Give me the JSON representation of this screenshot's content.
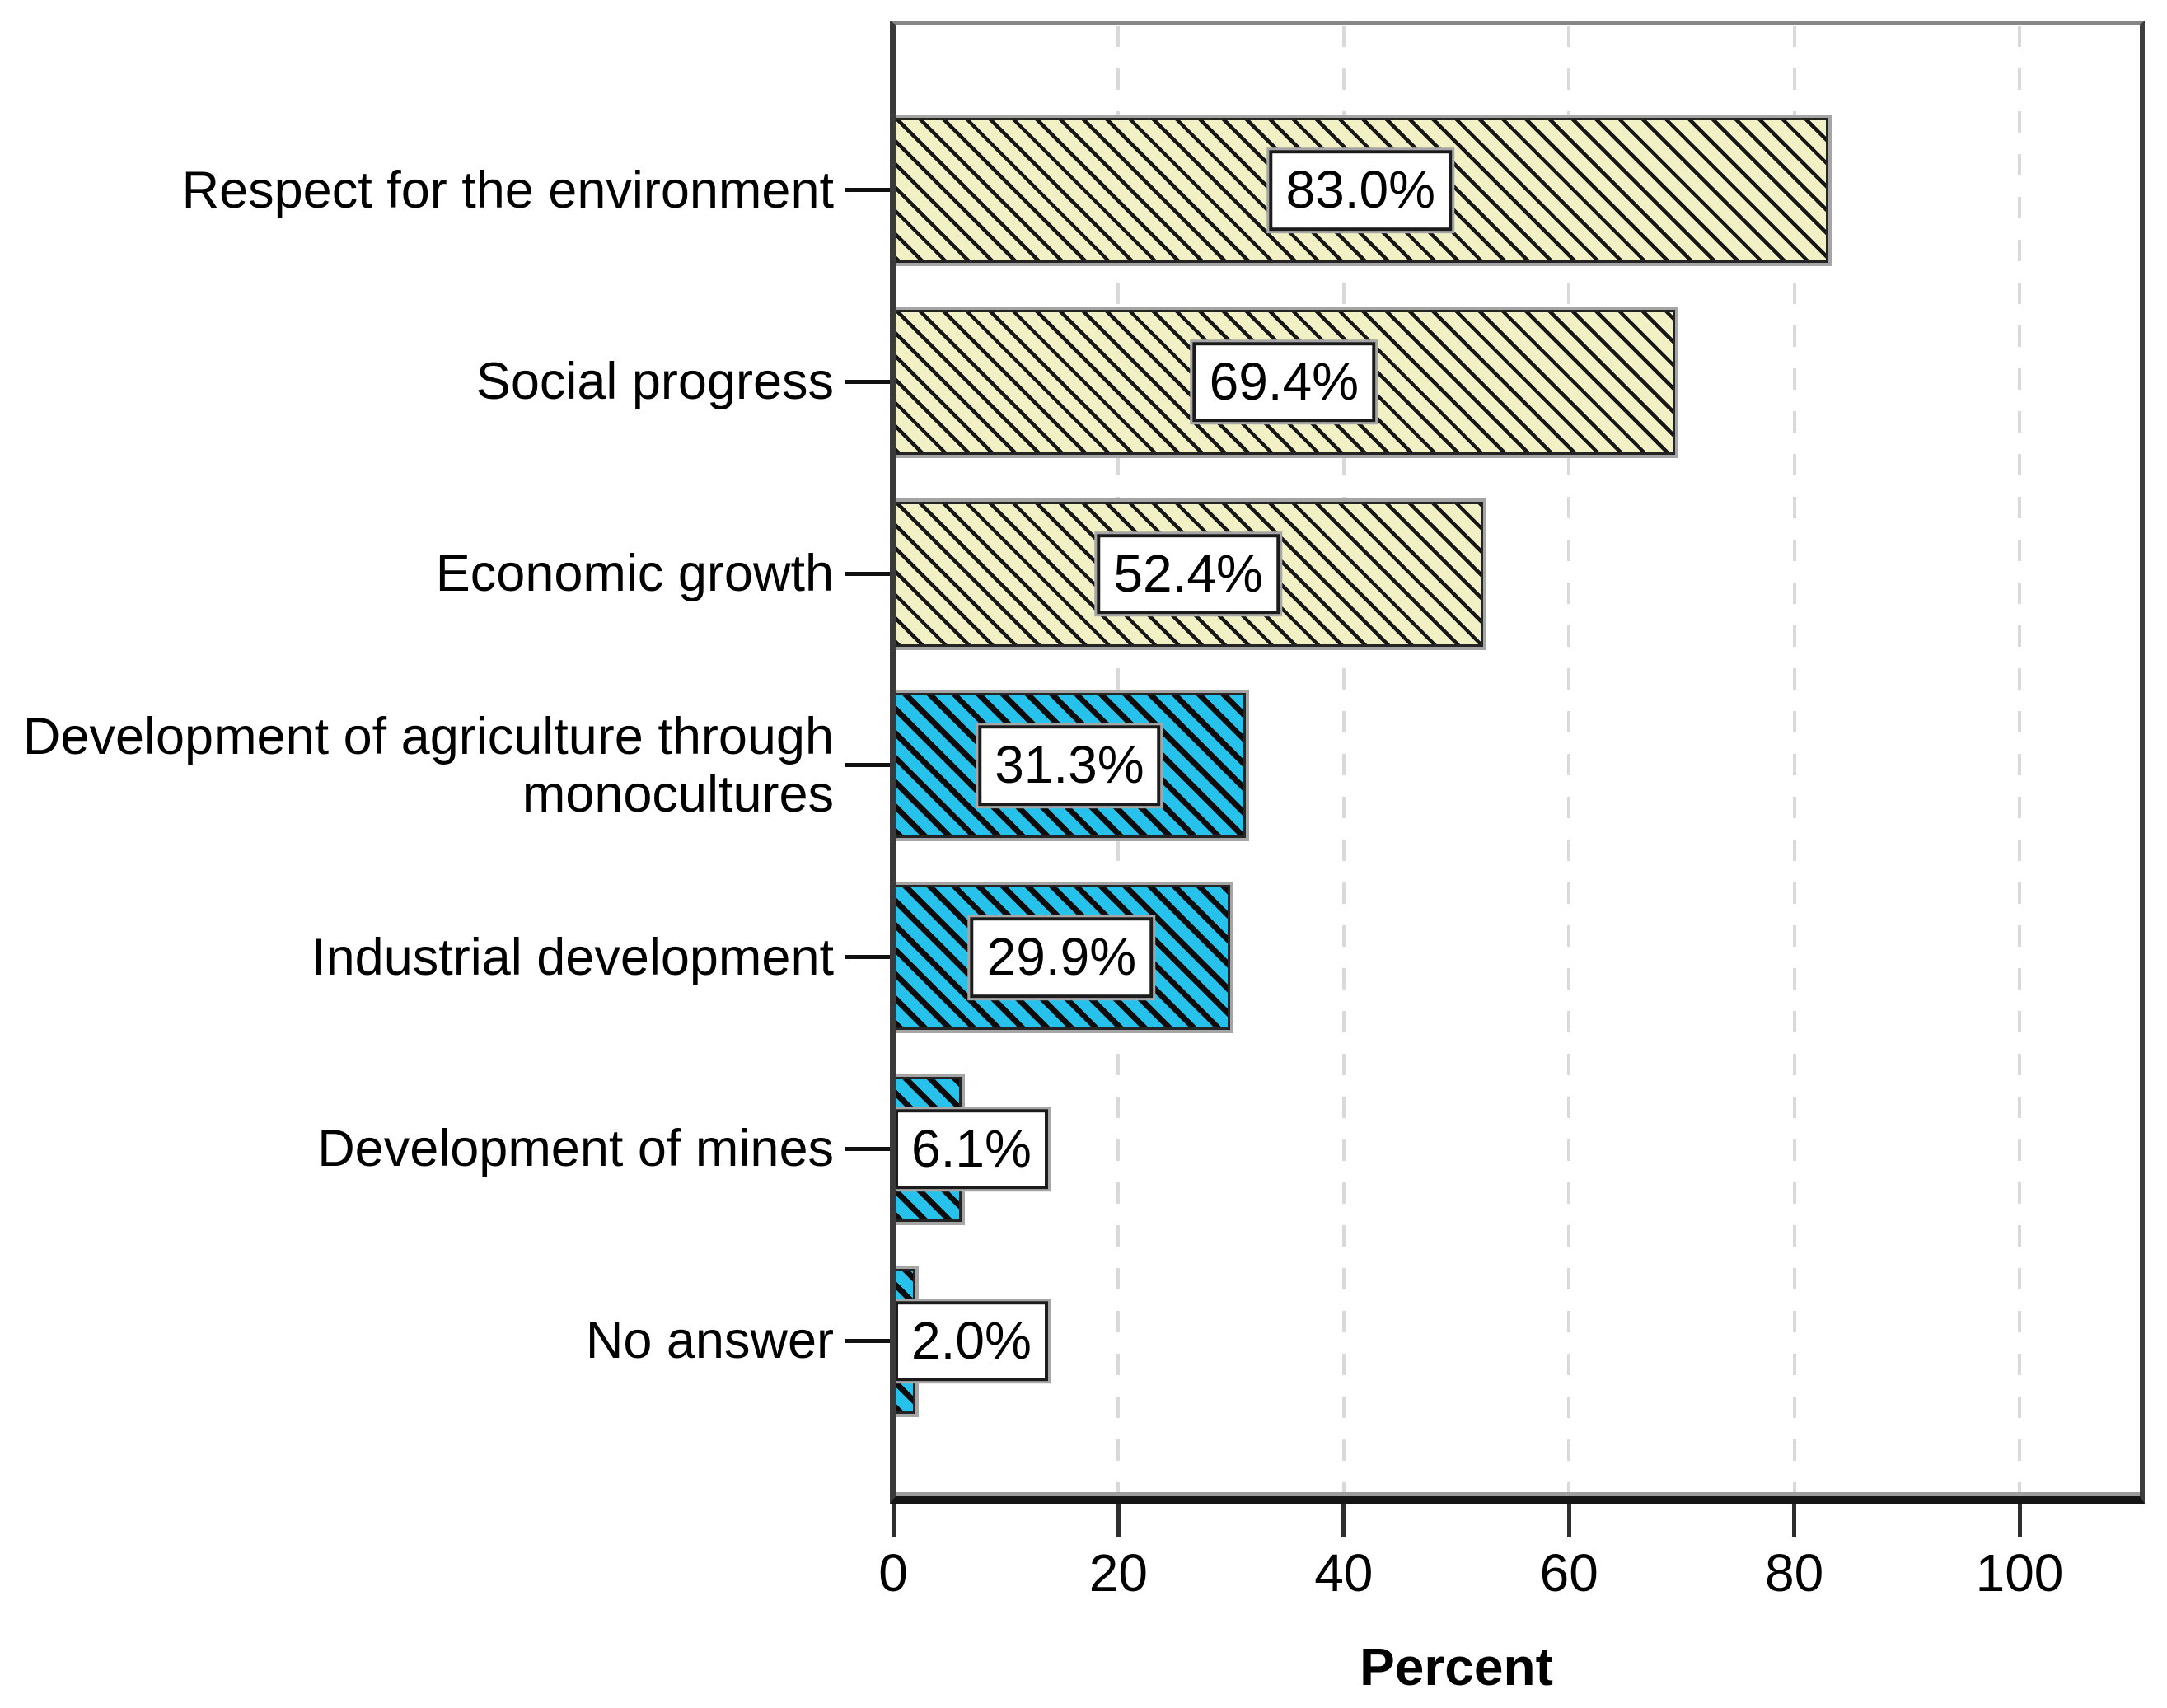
{
  "chart_data": {
    "type": "bar",
    "orientation": "horizontal",
    "title": "",
    "xlabel": "Percent",
    "ylabel": "",
    "categories": [
      "Respect for the environment",
      "Social progress",
      "Economic growth",
      "Development of agriculture through monocultures",
      "Industrial development",
      "Development of mines",
      "No answer"
    ],
    "category_slugs": [
      "respect-for-the-environment",
      "social-progress",
      "economic-growth",
      "development-of-agriculture-through-monocultures",
      "industrial-development",
      "development-of-mines",
      "no-answer"
    ],
    "values": [
      83.0,
      69.4,
      52.4,
      31.3,
      29.9,
      6.1,
      2.0
    ],
    "value_labels": [
      "83.0%",
      "69.4%",
      "52.4%",
      "31.3%",
      "29.9%",
      "6.1%",
      "2.0%"
    ],
    "bar_styles": [
      "khaki",
      "khaki",
      "khaki",
      "cyan",
      "cyan",
      "cyan",
      "cyan"
    ],
    "x_ticks": [
      0,
      20,
      40,
      60,
      80,
      100
    ],
    "x_tick_labels": [
      "0",
      "20",
      "40",
      "60",
      "80",
      "100"
    ],
    "xlim": [
      0,
      111
    ],
    "grid": "vertical dashed lines at x ticks",
    "legend": "none",
    "hatch_pattern": "45-degree backslash diagonal black stripes",
    "colors": {
      "khaki_fill": "#f2f1c6",
      "cyan_fill": "#27c2ec",
      "hatch_stripe": "#141414",
      "gridline": "#d9d9d9",
      "value_box_bg": "#ffffff",
      "value_box_border": "#1b1b1b",
      "axis_line": "#2e2e2e",
      "text": "#000000"
    }
  }
}
